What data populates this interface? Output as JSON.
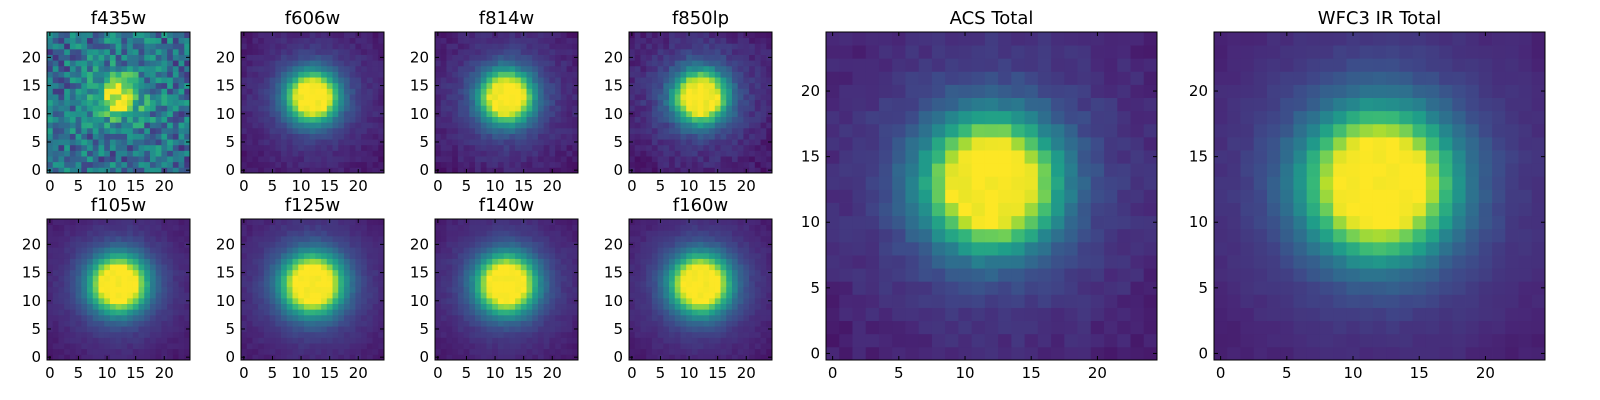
{
  "figure": {
    "background": "#ffffff",
    "colormap": "viridis",
    "colormap_stops": [
      "#440154",
      "#482878",
      "#3e4989",
      "#31688e",
      "#26828e",
      "#1f9e89",
      "#35b779",
      "#6ece58",
      "#b5de2b",
      "#fde725"
    ]
  },
  "chart_data": [
    {
      "type": "heatmap",
      "title": "f435w",
      "grid": [
        25,
        25
      ],
      "xlim": [
        0,
        24
      ],
      "ylim": [
        0,
        24
      ],
      "x_ticks": [
        0,
        5,
        10,
        15,
        20
      ],
      "y_ticks": [
        0,
        5,
        10,
        15,
        20
      ],
      "peak": {
        "x": 12,
        "y": 13
      },
      "profile_width": 2.2,
      "background_level": 0.35,
      "noise_level": 0.22,
      "peak_value": 0.98
    },
    {
      "type": "heatmap",
      "title": "f606w",
      "grid": [
        25,
        25
      ],
      "xlim": [
        0,
        24
      ],
      "ylim": [
        0,
        24
      ],
      "x_ticks": [
        0,
        5,
        10,
        15,
        20
      ],
      "y_ticks": [
        0,
        5,
        10,
        15,
        20
      ],
      "peak": {
        "x": 12,
        "y": 13
      },
      "profile_width": 2.9,
      "background_level": 0.05,
      "noise_level": 0.03,
      "peak_value": 1.0
    },
    {
      "type": "heatmap",
      "title": "f814w",
      "grid": [
        25,
        25
      ],
      "xlim": [
        0,
        24
      ],
      "ylim": [
        0,
        24
      ],
      "x_ticks": [
        0,
        5,
        10,
        15,
        20
      ],
      "y_ticks": [
        0,
        5,
        10,
        15,
        20
      ],
      "peak": {
        "x": 12,
        "y": 13
      },
      "profile_width": 3.0,
      "background_level": 0.05,
      "noise_level": 0.035,
      "peak_value": 1.0
    },
    {
      "type": "heatmap",
      "title": "f850lp",
      "grid": [
        25,
        25
      ],
      "xlim": [
        0,
        24
      ],
      "ylim": [
        0,
        24
      ],
      "x_ticks": [
        0,
        5,
        10,
        15,
        20
      ],
      "y_ticks": [
        0,
        5,
        10,
        15,
        20
      ],
      "peak": {
        "x": 12,
        "y": 13
      },
      "profile_width": 3.0,
      "background_level": 0.05,
      "noise_level": 0.045,
      "peak_value": 1.0
    },
    {
      "type": "heatmap",
      "title": "f105w",
      "grid": [
        25,
        25
      ],
      "xlim": [
        0,
        24
      ],
      "ylim": [
        0,
        24
      ],
      "x_ticks": [
        0,
        5,
        10,
        15,
        20
      ],
      "y_ticks": [
        0,
        5,
        10,
        15,
        20
      ],
      "peak": {
        "x": 12,
        "y": 13
      },
      "profile_width": 3.3,
      "background_level": 0.04,
      "noise_level": 0.02,
      "peak_value": 1.0
    },
    {
      "type": "heatmap",
      "title": "f125w",
      "grid": [
        25,
        25
      ],
      "xlim": [
        0,
        24
      ],
      "ylim": [
        0,
        24
      ],
      "x_ticks": [
        0,
        5,
        10,
        15,
        20
      ],
      "y_ticks": [
        0,
        5,
        10,
        15,
        20
      ],
      "peak": {
        "x": 12,
        "y": 13
      },
      "profile_width": 3.5,
      "background_level": 0.04,
      "noise_level": 0.02,
      "peak_value": 1.0
    },
    {
      "type": "heatmap",
      "title": "f140w",
      "grid": [
        25,
        25
      ],
      "xlim": [
        0,
        24
      ],
      "ylim": [
        0,
        24
      ],
      "x_ticks": [
        0,
        5,
        10,
        15,
        20
      ],
      "y_ticks": [
        0,
        5,
        10,
        15,
        20
      ],
      "peak": {
        "x": 12,
        "y": 13
      },
      "profile_width": 3.4,
      "background_level": 0.04,
      "noise_level": 0.02,
      "peak_value": 1.0
    },
    {
      "type": "heatmap",
      "title": "f160w",
      "grid": [
        25,
        25
      ],
      "xlim": [
        0,
        24
      ],
      "ylim": [
        0,
        24
      ],
      "x_ticks": [
        0,
        5,
        10,
        15,
        20
      ],
      "y_ticks": [
        0,
        5,
        10,
        15,
        20
      ],
      "peak": {
        "x": 12,
        "y": 13
      },
      "profile_width": 3.4,
      "background_level": 0.04,
      "noise_level": 0.02,
      "peak_value": 1.0
    },
    {
      "type": "heatmap",
      "title": "ACS Total",
      "grid": [
        25,
        25
      ],
      "xlim": [
        0,
        24
      ],
      "ylim": [
        0,
        24
      ],
      "x_ticks": [
        0,
        5,
        10,
        15,
        20
      ],
      "y_ticks": [
        0,
        5,
        10,
        15,
        20
      ],
      "peak": {
        "x": 12,
        "y": 13
      },
      "profile_width": 3.2,
      "background_level": 0.06,
      "noise_level": 0.03,
      "peak_value": 1.0
    },
    {
      "type": "heatmap",
      "title": "WFC3 IR Total",
      "grid": [
        25,
        25
      ],
      "xlim": [
        0,
        24
      ],
      "ylim": [
        0,
        24
      ],
      "x_ticks": [
        0,
        5,
        10,
        15,
        20
      ],
      "y_ticks": [
        0,
        5,
        10,
        15,
        20
      ],
      "peak": {
        "x": 12,
        "y": 13
      },
      "profile_width": 3.6,
      "background_level": 0.05,
      "noise_level": 0.015,
      "peak_value": 1.0
    }
  ]
}
